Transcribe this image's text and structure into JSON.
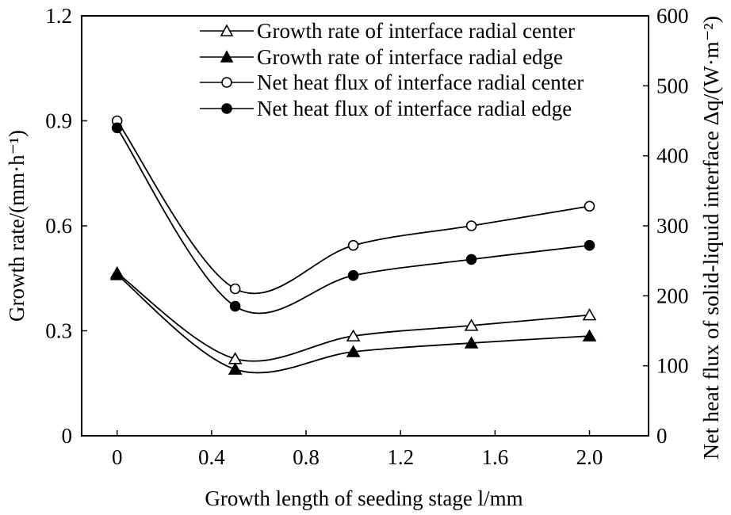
{
  "chart_data": {
    "type": "line",
    "xlabel": "Growth length of seeding stage l/mm",
    "ylabel_left": "Growth rate/(mm·h⁻¹)",
    "ylabel_right": "Net heat flux of solid-liquid interface Δq/(W·m⁻²)",
    "x_ticks": [
      "0",
      "0.4",
      "0.8",
      "1.2",
      "1.6",
      "2.0"
    ],
    "y_left_ticks": [
      "0",
      "0.3",
      "0.6",
      "0.9",
      "1.2"
    ],
    "y_right_ticks": [
      "0",
      "100",
      "200",
      "300",
      "400",
      "500",
      "600"
    ],
    "xlim": [
      -0.15,
      2.25
    ],
    "ylim_left": [
      0,
      1.2
    ],
    "ylim_right": [
      0,
      600
    ],
    "grid": false,
    "legend_position": "top-center",
    "x": [
      0,
      0.5,
      1.0,
      1.5,
      2.0
    ],
    "series": [
      {
        "name": "Growth rate of interface radial center",
        "axis": "left",
        "marker": "open-triangle",
        "values": [
          0.465,
          0.22,
          0.285,
          0.315,
          0.345
        ]
      },
      {
        "name": "Growth rate of interface radial edge",
        "axis": "left",
        "marker": "filled-triangle",
        "values": [
          0.46,
          0.19,
          0.24,
          0.265,
          0.285
        ]
      },
      {
        "name": "Net heat flux of interface radial center",
        "axis": "right",
        "marker": "open-circle",
        "values": [
          450,
          210,
          272,
          300,
          328
        ]
      },
      {
        "name": "Net heat flux of interface radial edge",
        "axis": "right",
        "marker": "filled-circle",
        "values": [
          440,
          185,
          229,
          252,
          272
        ]
      }
    ]
  }
}
